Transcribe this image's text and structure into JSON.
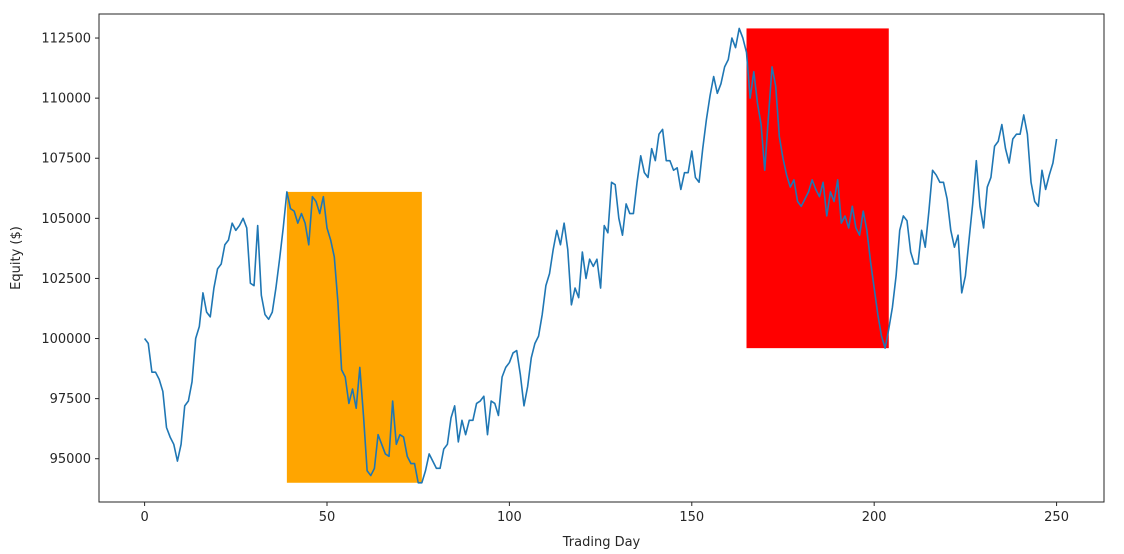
{
  "chart_data": {
    "type": "line",
    "xlabel": "Trading Day",
    "ylabel": "Equity ($)",
    "xlim": [
      -12.5,
      263
    ],
    "ylim": [
      93200,
      113500
    ],
    "x_ticks": [
      0,
      50,
      100,
      150,
      200,
      250
    ],
    "y_ticks": [
      95000,
      97500,
      100000,
      102500,
      105000,
      107500,
      110000,
      112500
    ],
    "grid": false,
    "legend": "none",
    "line_color": "#1f77b4",
    "highlights": [
      {
        "x_start": 39,
        "x_end": 76,
        "y_bottom": 94000,
        "y_top": 106100,
        "color": "#ffa500"
      },
      {
        "x_start": 165,
        "x_end": 204,
        "y_bottom": 99600,
        "y_top": 112900,
        "color": "#ff0000"
      }
    ],
    "series": [
      {
        "points": [
          [
            0,
            100000
          ],
          [
            1,
            99800
          ],
          [
            2,
            98600
          ],
          [
            3,
            98600
          ],
          [
            4,
            98300
          ],
          [
            5,
            97800
          ],
          [
            6,
            96300
          ],
          [
            7,
            95900
          ],
          [
            8,
            95600
          ],
          [
            9,
            94900
          ],
          [
            10,
            95600
          ],
          [
            11,
            97200
          ],
          [
            12,
            97400
          ],
          [
            13,
            98200
          ],
          [
            14,
            100000
          ],
          [
            15,
            100500
          ],
          [
            16,
            101900
          ],
          [
            17,
            101100
          ],
          [
            18,
            100900
          ],
          [
            19,
            102100
          ],
          [
            20,
            102900
          ],
          [
            21,
            103100
          ],
          [
            22,
            103900
          ],
          [
            23,
            104100
          ],
          [
            24,
            104800
          ],
          [
            25,
            104500
          ],
          [
            26,
            104700
          ],
          [
            27,
            105000
          ],
          [
            28,
            104600
          ],
          [
            29,
            102300
          ],
          [
            30,
            102200
          ],
          [
            31,
            104700
          ],
          [
            32,
            101800
          ],
          [
            33,
            101000
          ],
          [
            34,
            100800
          ],
          [
            35,
            101100
          ],
          [
            36,
            102100
          ],
          [
            37,
            103300
          ],
          [
            38,
            104600
          ],
          [
            39,
            106100
          ],
          [
            40,
            105400
          ],
          [
            41,
            105300
          ],
          [
            42,
            104800
          ],
          [
            43,
            105200
          ],
          [
            44,
            104800
          ],
          [
            45,
            103900
          ],
          [
            46,
            105900
          ],
          [
            47,
            105700
          ],
          [
            48,
            105200
          ],
          [
            49,
            105900
          ],
          [
            50,
            104600
          ],
          [
            51,
            104100
          ],
          [
            52,
            103400
          ],
          [
            53,
            101500
          ],
          [
            54,
            98700
          ],
          [
            55,
            98400
          ],
          [
            56,
            97300
          ],
          [
            57,
            97900
          ],
          [
            58,
            97100
          ],
          [
            59,
            98800
          ],
          [
            60,
            96800
          ],
          [
            61,
            94500
          ],
          [
            62,
            94300
          ],
          [
            63,
            94600
          ],
          [
            64,
            96000
          ],
          [
            65,
            95600
          ],
          [
            66,
            95200
          ],
          [
            67,
            95100
          ],
          [
            68,
            97400
          ],
          [
            69,
            95600
          ],
          [
            70,
            96000
          ],
          [
            71,
            95900
          ],
          [
            72,
            95100
          ],
          [
            73,
            94800
          ],
          [
            74,
            94800
          ],
          [
            75,
            94000
          ],
          [
            76,
            94000
          ],
          [
            77,
            94500
          ],
          [
            78,
            95200
          ],
          [
            79,
            94900
          ],
          [
            80,
            94600
          ],
          [
            81,
            94600
          ],
          [
            82,
            95400
          ],
          [
            83,
            95600
          ],
          [
            84,
            96700
          ],
          [
            85,
            97200
          ],
          [
            86,
            95700
          ],
          [
            87,
            96600
          ],
          [
            88,
            96000
          ],
          [
            89,
            96600
          ],
          [
            90,
            96600
          ],
          [
            91,
            97300
          ],
          [
            92,
            97400
          ],
          [
            93,
            97600
          ],
          [
            94,
            96000
          ],
          [
            95,
            97400
          ],
          [
            96,
            97300
          ],
          [
            97,
            96800
          ],
          [
            98,
            98400
          ],
          [
            99,
            98800
          ],
          [
            100,
            99000
          ],
          [
            101,
            99400
          ],
          [
            102,
            99500
          ],
          [
            103,
            98500
          ],
          [
            104,
            97200
          ],
          [
            105,
            98000
          ],
          [
            106,
            99200
          ],
          [
            107,
            99800
          ],
          [
            108,
            100100
          ],
          [
            109,
            101000
          ],
          [
            110,
            102200
          ],
          [
            111,
            102700
          ],
          [
            112,
            103700
          ],
          [
            113,
            104500
          ],
          [
            114,
            103900
          ],
          [
            115,
            104800
          ],
          [
            116,
            103700
          ],
          [
            117,
            101400
          ],
          [
            118,
            102100
          ],
          [
            119,
            101700
          ],
          [
            120,
            103600
          ],
          [
            121,
            102500
          ],
          [
            122,
            103300
          ],
          [
            123,
            103000
          ],
          [
            124,
            103300
          ],
          [
            125,
            102100
          ],
          [
            126,
            104700
          ],
          [
            127,
            104400
          ],
          [
            128,
            106500
          ],
          [
            129,
            106400
          ],
          [
            130,
            105000
          ],
          [
            131,
            104300
          ],
          [
            132,
            105600
          ],
          [
            133,
            105200
          ],
          [
            134,
            105200
          ],
          [
            135,
            106500
          ],
          [
            136,
            107600
          ],
          [
            137,
            106900
          ],
          [
            138,
            106700
          ],
          [
            139,
            107900
          ],
          [
            140,
            107400
          ],
          [
            141,
            108500
          ],
          [
            142,
            108700
          ],
          [
            143,
            107400
          ],
          [
            144,
            107400
          ],
          [
            145,
            107000
          ],
          [
            146,
            107100
          ],
          [
            147,
            106200
          ],
          [
            148,
            106900
          ],
          [
            149,
            106900
          ],
          [
            150,
            107800
          ],
          [
            151,
            106700
          ],
          [
            152,
            106500
          ],
          [
            153,
            107900
          ],
          [
            154,
            109100
          ],
          [
            155,
            110100
          ],
          [
            156,
            110900
          ],
          [
            157,
            110200
          ],
          [
            158,
            110600
          ],
          [
            159,
            111300
          ],
          [
            160,
            111600
          ],
          [
            161,
            112500
          ],
          [
            162,
            112100
          ],
          [
            163,
            112900
          ],
          [
            164,
            112500
          ],
          [
            165,
            111900
          ],
          [
            166,
            110000
          ],
          [
            167,
            111100
          ],
          [
            168,
            109800
          ],
          [
            169,
            108900
          ],
          [
            170,
            107000
          ],
          [
            171,
            109200
          ],
          [
            172,
            111300
          ],
          [
            173,
            110500
          ],
          [
            174,
            108400
          ],
          [
            175,
            107500
          ],
          [
            176,
            106800
          ],
          [
            177,
            106300
          ],
          [
            178,
            106600
          ],
          [
            179,
            105700
          ],
          [
            180,
            105500
          ],
          [
            181,
            105800
          ],
          [
            182,
            106100
          ],
          [
            183,
            106600
          ],
          [
            184,
            106200
          ],
          [
            185,
            105900
          ],
          [
            186,
            106500
          ],
          [
            187,
            105100
          ],
          [
            188,
            106100
          ],
          [
            189,
            105700
          ],
          [
            190,
            106600
          ],
          [
            191,
            104800
          ],
          [
            192,
            105100
          ],
          [
            193,
            104600
          ],
          [
            194,
            105500
          ],
          [
            195,
            104600
          ],
          [
            196,
            104300
          ],
          [
            197,
            105300
          ],
          [
            198,
            104500
          ],
          [
            199,
            103200
          ],
          [
            200,
            102100
          ],
          [
            201,
            101000
          ],
          [
            202,
            100100
          ],
          [
            203,
            99600
          ],
          [
            204,
            100400
          ],
          [
            205,
            101300
          ],
          [
            206,
            102600
          ],
          [
            207,
            104500
          ],
          [
            208,
            105100
          ],
          [
            209,
            104900
          ],
          [
            210,
            103600
          ],
          [
            211,
            103100
          ],
          [
            212,
            103100
          ],
          [
            213,
            104500
          ],
          [
            214,
            103800
          ],
          [
            215,
            105300
          ],
          [
            216,
            107000
          ],
          [
            217,
            106800
          ],
          [
            218,
            106500
          ],
          [
            219,
            106500
          ],
          [
            220,
            105800
          ],
          [
            221,
            104500
          ],
          [
            222,
            103800
          ],
          [
            223,
            104300
          ],
          [
            224,
            101900
          ],
          [
            225,
            102600
          ],
          [
            226,
            104100
          ],
          [
            227,
            105600
          ],
          [
            228,
            107400
          ],
          [
            229,
            105500
          ],
          [
            230,
            104600
          ],
          [
            231,
            106300
          ],
          [
            232,
            106700
          ],
          [
            233,
            108000
          ],
          [
            234,
            108200
          ],
          [
            235,
            108900
          ],
          [
            236,
            107900
          ],
          [
            237,
            107300
          ],
          [
            238,
            108300
          ],
          [
            239,
            108500
          ],
          [
            240,
            108500
          ],
          [
            241,
            109300
          ],
          [
            242,
            108500
          ],
          [
            243,
            106500
          ],
          [
            244,
            105700
          ],
          [
            245,
            105500
          ],
          [
            246,
            107000
          ],
          [
            247,
            106200
          ],
          [
            248,
            106800
          ],
          [
            249,
            107300
          ],
          [
            250,
            108300
          ]
        ]
      }
    ]
  }
}
